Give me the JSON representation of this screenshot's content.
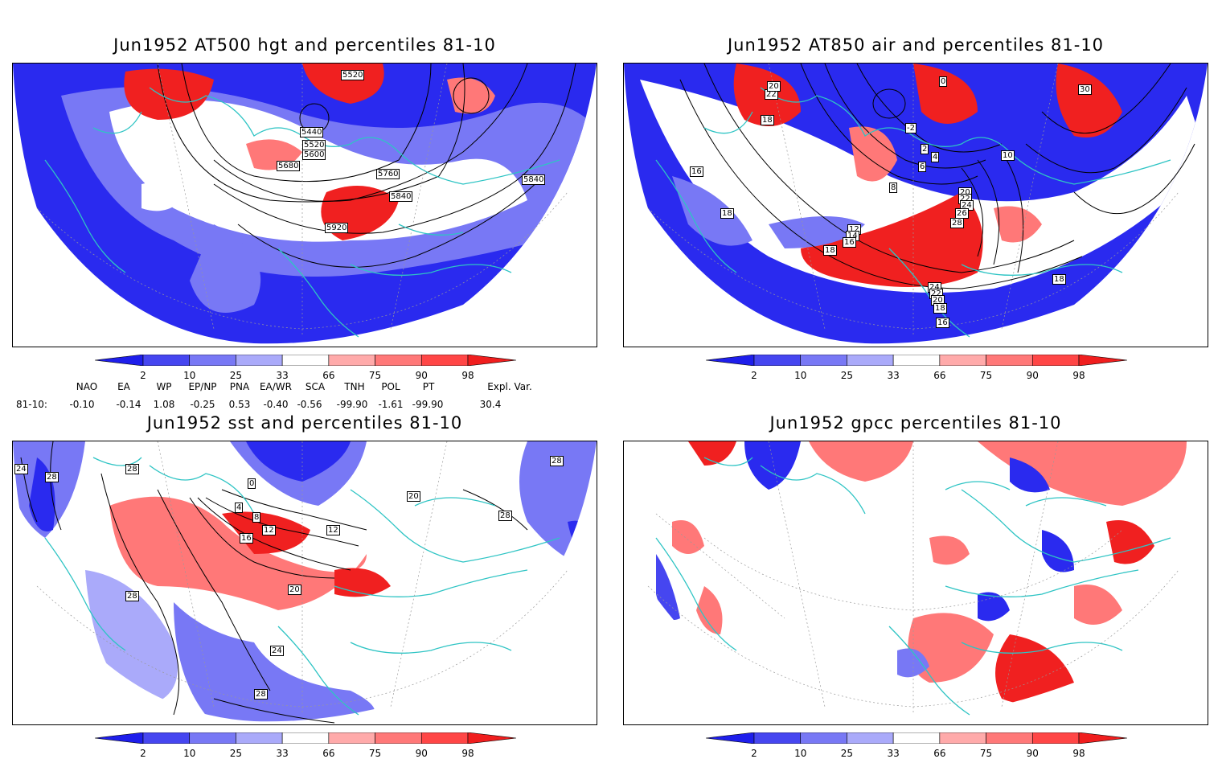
{
  "panels": [
    {
      "title": "Jun1952 AT500 hgt and percentiles 81-10",
      "contour_labels": [
        "5520",
        "5440",
        "5520",
        "5600",
        "5680",
        "5760",
        "5840",
        "5920",
        "5840"
      ]
    },
    {
      "title": "Jun1952 AT850 air and percentiles 81-10",
      "contour_labels": [
        "22",
        "20",
        "18",
        "0",
        "-2",
        "2",
        "4",
        "6",
        "8",
        "10",
        "12",
        "14",
        "16",
        "18",
        "20",
        "22",
        "24",
        "26",
        "28",
        "30",
        "16",
        "18",
        "18",
        "24",
        "22",
        "20",
        "18",
        "16"
      ]
    },
    {
      "title": "Jun1952 sst and percentiles 81-10",
      "contour_labels": [
        "24",
        "28",
        "28",
        "28",
        "0",
        "4",
        "8",
        "12",
        "16",
        "12",
        "20",
        "20",
        "28",
        "28",
        "24",
        "28"
      ]
    },
    {
      "title": "Jun1952 gpcc percentiles 81-10",
      "contour_labels": []
    }
  ],
  "colorbar": {
    "ticks": [
      "2",
      "10",
      "25",
      "33",
      "66",
      "75",
      "90",
      "98"
    ],
    "colors": [
      "#1e1eeb",
      "#4646f0",
      "#7878f5",
      "#aaaafa",
      "#ffffff",
      "#ffaaaa",
      "#ff7878",
      "#ff4646",
      "#f01e1e"
    ]
  },
  "indices": {
    "row_label": "81-10:",
    "headers": [
      "NAO",
      "EA",
      "WP",
      "EP/NP",
      "PNA",
      "EA/WR",
      "SCA",
      "TNH",
      "POL",
      "PT",
      "Expl. Var."
    ],
    "values": [
      "-0.10",
      "-0.14",
      "1.08",
      "-0.25",
      "0.53",
      "-0.40",
      "-0.56",
      "-99.90",
      "-1.61",
      "-99.90",
      "30.4"
    ]
  },
  "colors": {
    "coast": "#2ec4c4",
    "blue": "#2a2aef",
    "red": "#f02020"
  }
}
